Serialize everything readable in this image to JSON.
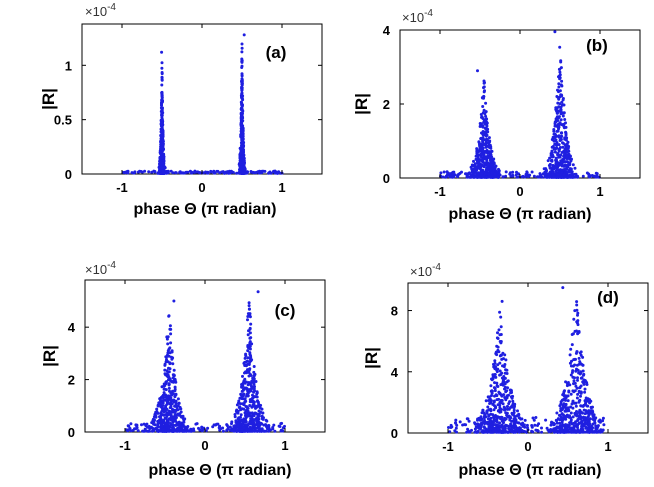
{
  "chart_data": [
    {
      "type": "scatter",
      "panel_label": "(a)",
      "xlabel": "phase Θ (π radian)",
      "ylabel": "|R|",
      "multiplier": "×10",
      "multiplier_exp": "-4",
      "xlim": [
        -1.5,
        1.5
      ],
      "ylim": [
        0,
        1.38
      ],
      "xticks": [
        "-1",
        "0",
        "1"
      ],
      "yticks": [
        "0",
        "0.5",
        "1"
      ],
      "xtick_values": [
        -1,
        0,
        1
      ],
      "ytick_values": [
        0,
        0.5,
        1
      ],
      "peaks": [
        -0.5,
        0.5
      ],
      "peak_heights": [
        1.12,
        1.28
      ],
      "spread": 0.015,
      "background_level": 0.02,
      "marker_color": "#1f1fe0"
    },
    {
      "type": "scatter",
      "panel_label": "(b)",
      "xlabel": "phase Θ (π radian)",
      "ylabel": "|R|",
      "multiplier": "×10",
      "multiplier_exp": "-4",
      "xlim": [
        -1.5,
        1.5
      ],
      "ylim": [
        0,
        4
      ],
      "xticks": [
        "-1",
        "0",
        "1"
      ],
      "yticks": [
        "0",
        "2",
        "4"
      ],
      "xtick_values": [
        -1,
        0,
        1
      ],
      "ytick_values": [
        0,
        2,
        4
      ],
      "peaks": [
        -0.45,
        0.5
      ],
      "peak_heights": [
        2.9,
        3.95
      ],
      "spread": 0.08,
      "background_level": 0.15,
      "marker_color": "#1f1fe0"
    },
    {
      "type": "scatter",
      "panel_label": "(c)",
      "xlabel": "phase Θ (π radian)",
      "ylabel": "|R|",
      "multiplier": "×10",
      "multiplier_exp": "-4",
      "xlim": [
        -1.5,
        1.5
      ],
      "ylim": [
        0,
        5.8
      ],
      "xticks": [
        "-1",
        "0",
        "1"
      ],
      "yticks": [
        "0",
        "2",
        "4"
      ],
      "xtick_values": [
        -1,
        0,
        1
      ],
      "ytick_values": [
        0,
        2,
        4
      ],
      "peaks": [
        -0.45,
        0.55
      ],
      "peak_heights": [
        5.0,
        5.35
      ],
      "spread": 0.1,
      "background_level": 0.3,
      "marker_color": "#1f1fe0"
    },
    {
      "type": "scatter",
      "panel_label": "(d)",
      "xlabel": "phase Θ (π radian)",
      "ylabel": "|R|",
      "multiplier": "×10",
      "multiplier_exp": "-4",
      "xlim": [
        -1.5,
        1.5
      ],
      "ylim": [
        0,
        9.8
      ],
      "xticks": [
        "-1",
        "0",
        "1"
      ],
      "yticks": [
        "0",
        "4",
        "8"
      ],
      "xtick_values": [
        -1,
        0,
        1
      ],
      "ytick_values": [
        0,
        4,
        8
      ],
      "peaks": [
        -0.35,
        0.6
      ],
      "peak_heights": [
        8.6,
        9.5
      ],
      "spread": 0.14,
      "background_level": 1.0,
      "marker_color": "#1f1fe0"
    }
  ]
}
